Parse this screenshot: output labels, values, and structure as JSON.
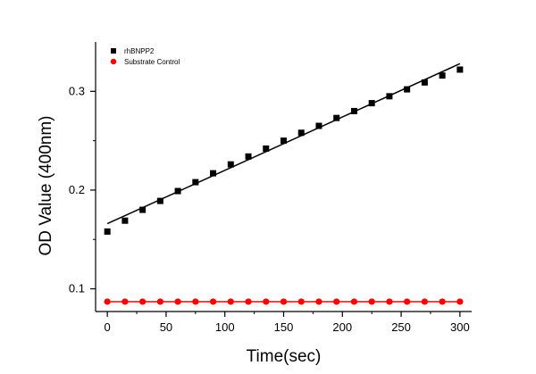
{
  "chart_data": {
    "type": "scatter",
    "title": "",
    "xlabel": "Time(sec)",
    "ylabel": "OD Value (400nm)",
    "xlim": [
      -10,
      310
    ],
    "ylim": [
      0.077,
      0.35
    ],
    "xticks": [
      0,
      50,
      100,
      150,
      200,
      250,
      300
    ],
    "yticks": [
      0.1,
      0.2,
      0.3
    ],
    "ytick_labels": [
      "0.1",
      "0.2",
      "0.3"
    ],
    "grid": false,
    "legend": "top-left",
    "series": [
      {
        "name": "rhBNPP2",
        "marker": "square",
        "color": "#000000",
        "x": [
          0,
          15,
          30,
          45,
          60,
          75,
          90,
          105,
          120,
          135,
          150,
          165,
          180,
          195,
          210,
          225,
          240,
          255,
          270,
          285,
          300
        ],
        "y": [
          0.158,
          0.169,
          0.18,
          0.189,
          0.199,
          0.208,
          0.217,
          0.226,
          0.234,
          0.242,
          0.25,
          0.258,
          0.265,
          0.273,
          0.28,
          0.288,
          0.295,
          0.302,
          0.309,
          0.316,
          0.322
        ],
        "fit": {
          "x": [
            0,
            300
          ],
          "y": [
            0.166,
            0.328
          ],
          "color": "#000000"
        }
      },
      {
        "name": "Substrate Control",
        "marker": "circle",
        "color": "#ff0000",
        "x": [
          0,
          15,
          30,
          45,
          60,
          75,
          90,
          105,
          120,
          135,
          150,
          165,
          180,
          195,
          210,
          225,
          240,
          255,
          270,
          285,
          300
        ],
        "y": [
          0.087,
          0.087,
          0.087,
          0.087,
          0.087,
          0.087,
          0.087,
          0.087,
          0.087,
          0.087,
          0.087,
          0.087,
          0.087,
          0.087,
          0.087,
          0.087,
          0.087,
          0.087,
          0.087,
          0.087,
          0.087
        ],
        "fit": {
          "x": [
            0,
            300
          ],
          "y": [
            0.087,
            0.087
          ],
          "color": "#ff0000"
        }
      }
    ]
  }
}
